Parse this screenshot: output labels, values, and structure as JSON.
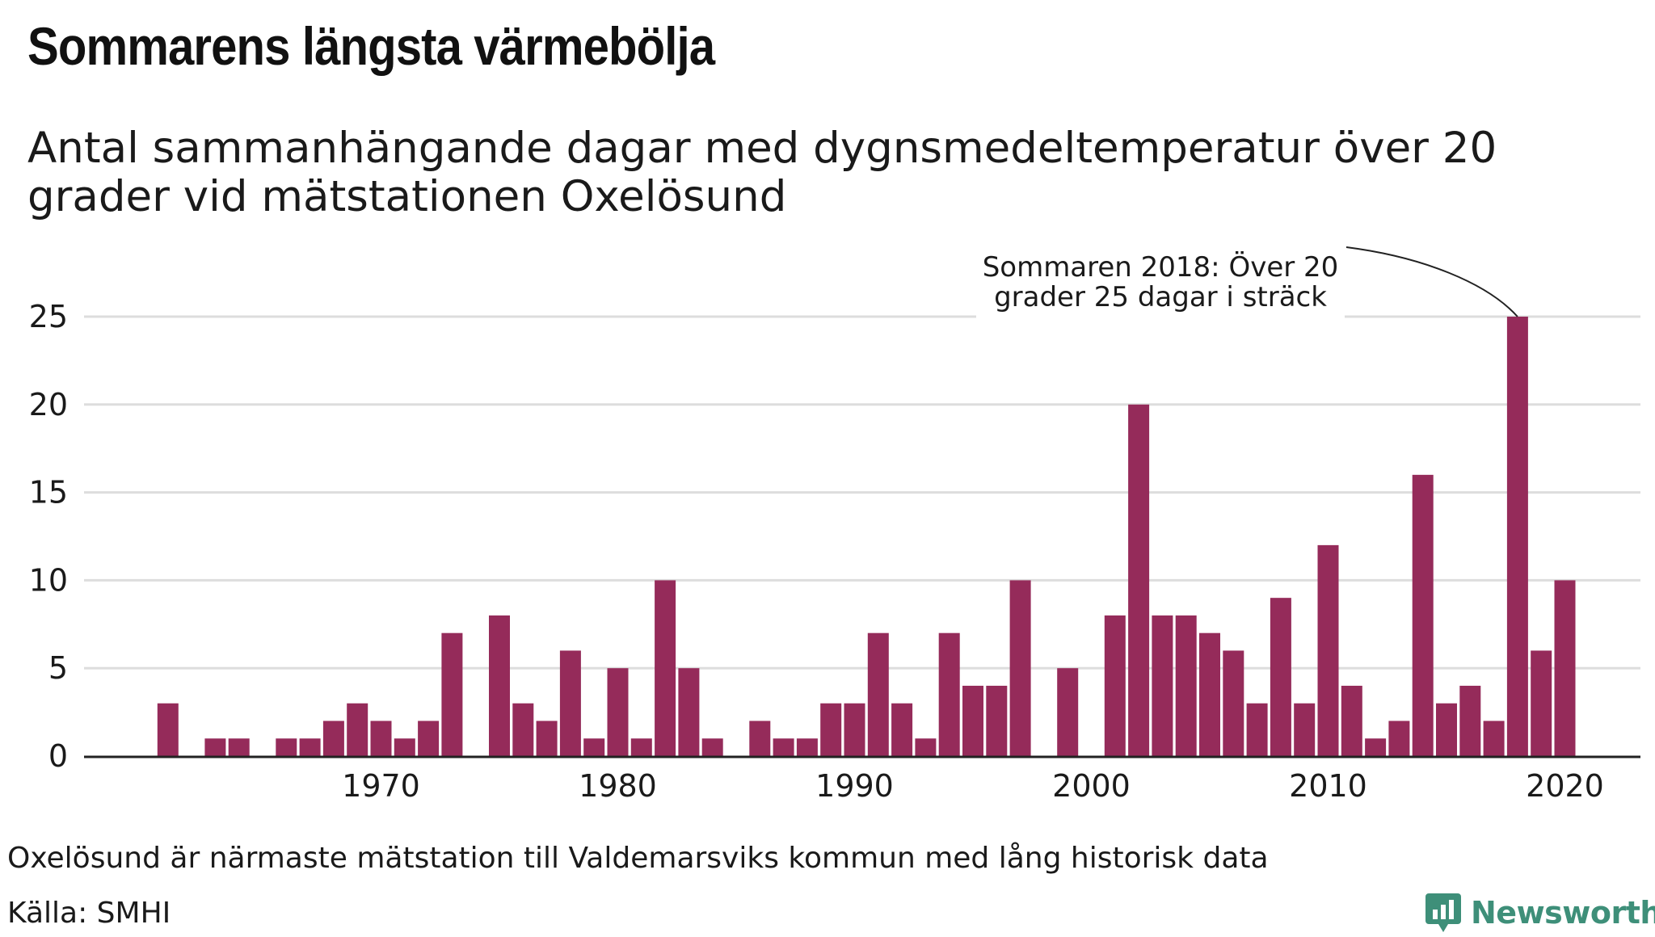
{
  "title": "Sommarens längsta värmebölja",
  "subtitle": "Antal sammanhängande dagar med dygnsmedeltemperatur över 20 grader vid mätstationen Oxelösund",
  "note": "Oxelösund är närmaste mätstation till Valdemarsviks kommun med lång historisk data",
  "source": "Källa: SMHI",
  "brand": {
    "name": "Newsworthy",
    "icon": "newsworthy-logo-icon",
    "color": "#3e8f79"
  },
  "annotation": {
    "text_lines": [
      "Sommaren 2018: Över 20",
      "grader 25 dagar i sträck"
    ],
    "target_year": 2018
  },
  "colors": {
    "bar": "#952b5a",
    "grid": "#dddddd",
    "axis": "#222222"
  },
  "chart_data": {
    "type": "bar",
    "title": "Sommarens längsta värmebölja",
    "xlabel": "",
    "ylabel": "",
    "ylim": [
      0,
      25
    ],
    "yticks": [
      0,
      5,
      10,
      15,
      20,
      25
    ],
    "xticks": [
      1970,
      1980,
      1990,
      2000,
      2010,
      2020
    ],
    "grid": true,
    "x": [
      1961,
      1962,
      1963,
      1964,
      1965,
      1966,
      1967,
      1968,
      1969,
      1970,
      1971,
      1972,
      1973,
      1974,
      1975,
      1976,
      1977,
      1978,
      1979,
      1980,
      1981,
      1982,
      1983,
      1984,
      1985,
      1986,
      1987,
      1988,
      1989,
      1990,
      1991,
      1992,
      1993,
      1994,
      1995,
      1996,
      1997,
      1998,
      1999,
      2000,
      2001,
      2002,
      2003,
      2004,
      2005,
      2006,
      2007,
      2008,
      2009,
      2010,
      2011,
      2012,
      2013,
      2014,
      2015,
      2016,
      2017,
      2018,
      2019,
      2020
    ],
    "values": [
      3,
      0,
      1,
      1,
      0,
      1,
      1,
      2,
      3,
      2,
      1,
      2,
      7,
      0,
      8,
      3,
      2,
      6,
      1,
      5,
      1,
      10,
      5,
      1,
      0,
      2,
      1,
      1,
      3,
      3,
      7,
      3,
      1,
      7,
      4,
      4,
      10,
      0,
      5,
      0,
      8,
      20,
      8,
      8,
      7,
      6,
      3,
      9,
      3,
      12,
      4,
      1,
      2,
      16,
      3,
      4,
      2,
      25,
      6,
      10
    ]
  }
}
